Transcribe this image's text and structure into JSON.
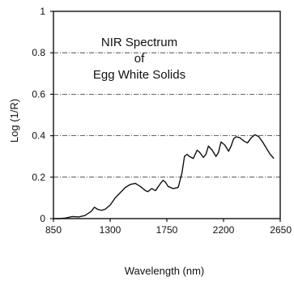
{
  "chart_data": {
    "type": "line",
    "title_lines": [
      "NIR Spectrum",
      "of",
      "Egg White Solids"
    ],
    "xlabel": "Wavelength (nm)",
    "ylabel": "Log (1/R)",
    "xlim": [
      850,
      2650
    ],
    "ylim": [
      0,
      1
    ],
    "x_ticks": [
      850,
      1300,
      1750,
      2200,
      2650
    ],
    "x_tick_labels": [
      "850",
      "1300",
      "1750",
      "2200",
      "2650"
    ],
    "y_ticks": [
      0,
      0.2,
      0.4,
      0.6,
      0.8,
      1
    ],
    "y_tick_labels": [
      "0",
      "0.2",
      "0.4",
      "0.6",
      "0.8",
      "1"
    ],
    "grid": "horizontal",
    "series": [
      {
        "x": [
          850,
          900,
          950,
          1000,
          1050,
          1100,
          1150,
          1175,
          1200,
          1230,
          1260,
          1300,
          1340,
          1380,
          1420,
          1460,
          1500,
          1540,
          1580,
          1600,
          1630,
          1660,
          1700,
          1720,
          1740,
          1760,
          1800,
          1840,
          1870,
          1890,
          1910,
          1930,
          1960,
          1990,
          2010,
          2040,
          2060,
          2080,
          2110,
          2140,
          2160,
          2180,
          2210,
          2240,
          2260,
          2280,
          2300,
          2330,
          2360,
          2390,
          2420,
          2450,
          2480,
          2510,
          2540,
          2570,
          2600
        ],
        "y": [
          0.0,
          0.0,
          0.003,
          0.01,
          0.008,
          0.015,
          0.035,
          0.055,
          0.045,
          0.04,
          0.045,
          0.065,
          0.1,
          0.125,
          0.15,
          0.165,
          0.17,
          0.155,
          0.135,
          0.13,
          0.145,
          0.135,
          0.17,
          0.185,
          0.175,
          0.155,
          0.145,
          0.15,
          0.22,
          0.3,
          0.31,
          0.3,
          0.29,
          0.33,
          0.32,
          0.295,
          0.31,
          0.35,
          0.33,
          0.3,
          0.32,
          0.37,
          0.355,
          0.325,
          0.35,
          0.385,
          0.395,
          0.39,
          0.375,
          0.365,
          0.39,
          0.405,
          0.395,
          0.37,
          0.34,
          0.31,
          0.29
        ]
      }
    ]
  }
}
